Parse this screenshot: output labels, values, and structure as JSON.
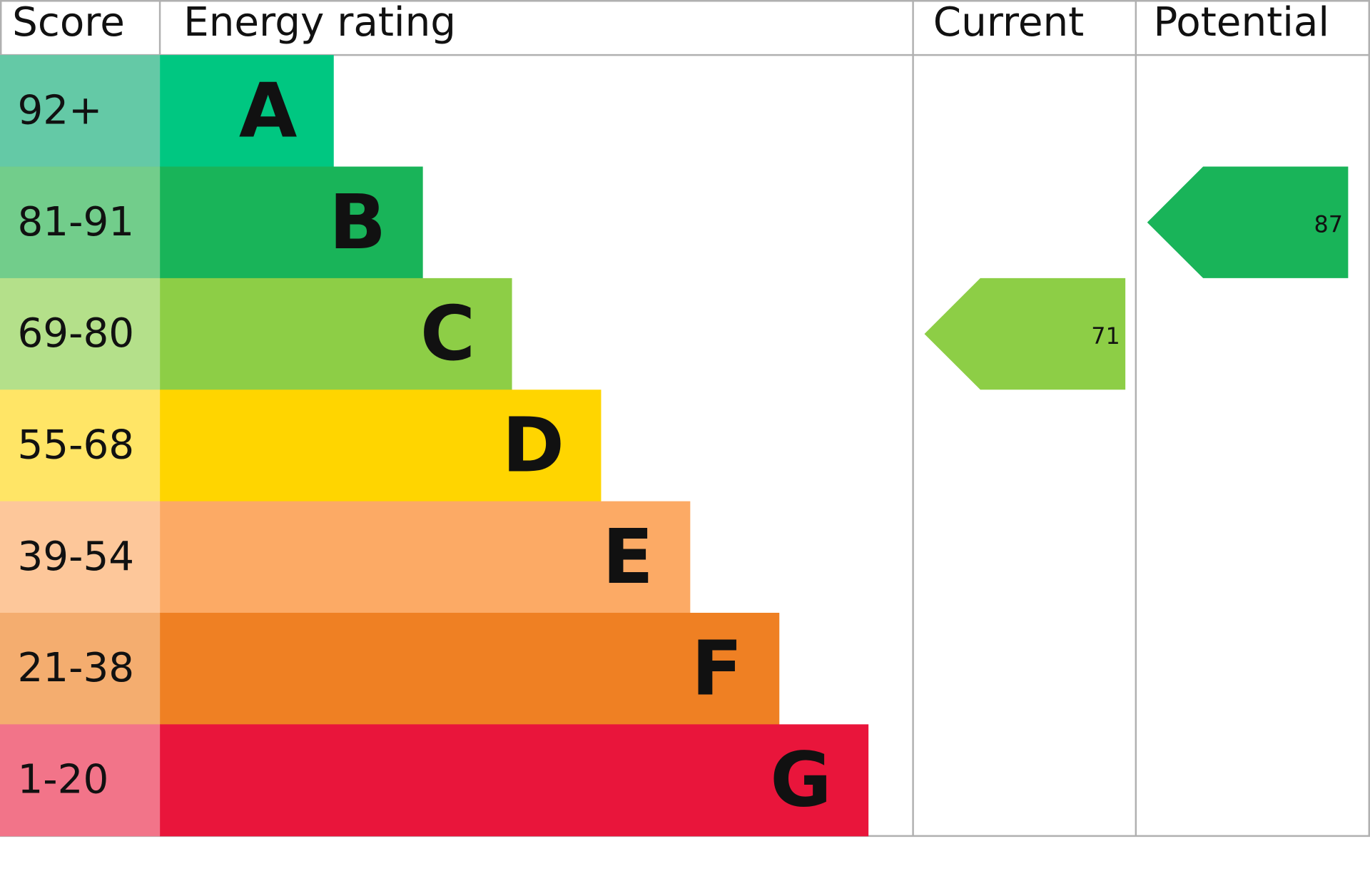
{
  "header": {
    "score": "Score",
    "rating": "Energy rating",
    "current": "Current",
    "potential": "Potential"
  },
  "rows": [
    {
      "score": "92+",
      "band": "A",
      "color": "#00c781",
      "score_color": "#64c9a6"
    },
    {
      "score": "81-91",
      "band": "B",
      "color": "#19b459",
      "score_color": "#72cd8b"
    },
    {
      "score": "69-80",
      "band": "C",
      "color": "#8dce46",
      "score_color": "#b4e08a"
    },
    {
      "score": "55-68",
      "band": "D",
      "color": "#ffd500",
      "score_color": "#ffe566"
    },
    {
      "score": "39-54",
      "band": "E",
      "color": "#fcaa65",
      "score_color": "#fdc79a"
    },
    {
      "score": "21-38",
      "band": "F",
      "color": "#ef8023",
      "score_color": "#f4ad6f"
    },
    {
      "score": "1-20",
      "band": "G",
      "color": "#e9153b",
      "score_color": "#f27489"
    }
  ],
  "current": 71,
  "potential": 87
}
